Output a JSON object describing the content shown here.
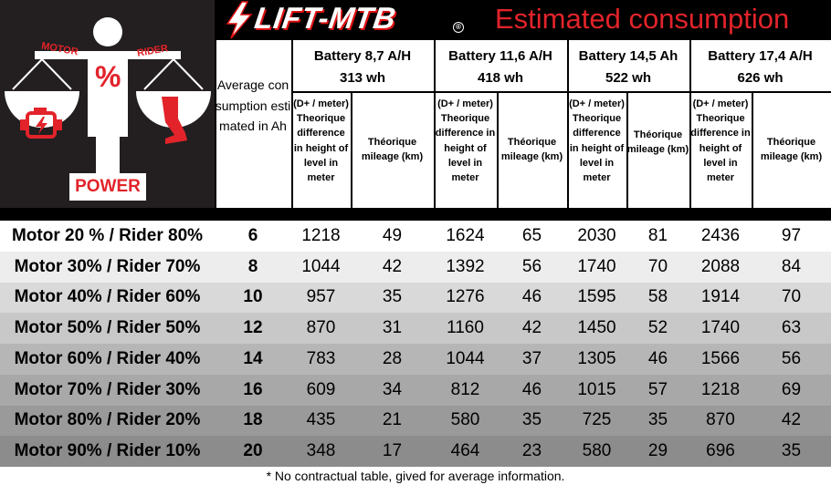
{
  "graphic": {
    "motor_label": "MOTOR",
    "rider_label": "RIDER",
    "percent_symbol": "%",
    "power_label": "POWER",
    "motor_icon": "engine-icon",
    "rider_icon": "leg-icon",
    "colors": {
      "panel": "#231f20",
      "accent": "#e2232a",
      "figure": "#ffffff"
    }
  },
  "brand": {
    "logo_text": "LIFT-MTB",
    "registered_mark": "®",
    "page_title": "Estimated consumption",
    "colors": {
      "title": "#e2232a",
      "bar": "#000000"
    }
  },
  "table": {
    "avg_header": "Average consumption estimated in Ah",
    "batteries": [
      {
        "title_line1": "Battery 8,7 A/H",
        "title_line2": "313 wh",
        "dplus_header": "(D+ / meter) Theorique difference in height of level in meter",
        "mileage_header": "Théorique mileage (km)"
      },
      {
        "title_line1": "Battery 11,6 A/H",
        "title_line2": "418 wh",
        "dplus_header": "(D+ / meter) Theorique difference in height of level in meter",
        "mileage_header": "Théorique mileage (km)"
      },
      {
        "title_line1": "Battery 14,5 Ah",
        "title_line2": "522 wh",
        "dplus_header": "(D+ / meter) Theorique difference in height of level in meter",
        "mileage_header": "Théorique mileage (km)"
      },
      {
        "title_line1": "Battery 17,4 A/H",
        "title_line2": "626 wh",
        "dplus_header": "(D+ / meter) Theorique difference in height of level in meter",
        "mileage_header": "Théorique mileage (km)"
      }
    ],
    "rows": [
      {
        "label": "Motor 20 % / Rider 80%",
        "ah": "6",
        "values": [
          "1218",
          "49",
          "1624",
          "65",
          "2030",
          "81",
          "2436",
          "97"
        ],
        "bg": "#ffffff"
      },
      {
        "label": "Motor 30% / Rider 70%",
        "ah": "8",
        "values": [
          "1044",
          "42",
          "1392",
          "56",
          "1740",
          "70",
          "2088",
          "84"
        ],
        "bg": "#ededed"
      },
      {
        "label": "Motor 40% / Rider 60%",
        "ah": "10",
        "values": [
          "957",
          "35",
          "1276",
          "46",
          "1595",
          "58",
          "1914",
          "70"
        ],
        "bg": "#d9d9d9"
      },
      {
        "label": "Motor 50% / Rider 50%",
        "ah": "12",
        "values": [
          "870",
          "31",
          "1160",
          "42",
          "1450",
          "52",
          "1740",
          "63"
        ],
        "bg": "#c8c8c8"
      },
      {
        "label": "Motor 60%  / Rider 40%",
        "ah": "14",
        "values": [
          "783",
          "28",
          "1044",
          "37",
          "1305",
          "46",
          "1566",
          "56"
        ],
        "bg": "#b6b6b6"
      },
      {
        "label": "Motor 70% / Rider 30%",
        "ah": "16",
        "values": [
          "609",
          "34",
          "812",
          "46",
          "1015",
          "57",
          "1218",
          "69"
        ],
        "bg": "#a8a8a8"
      },
      {
        "label": "Motor 80%  / Rider 20%",
        "ah": "18",
        "values": [
          "435",
          "21",
          "580",
          "35",
          "725",
          "35",
          "870",
          "42"
        ],
        "bg": "#9a9a9a"
      },
      {
        "label": "Motor 90% / Rider 10%",
        "ah": "20",
        "values": [
          "348",
          "17",
          "464",
          "23",
          "580",
          "29",
          "696",
          "35"
        ],
        "bg": "#8c8c8c"
      }
    ]
  },
  "footnote": "* No contractual table, gived for average information."
}
